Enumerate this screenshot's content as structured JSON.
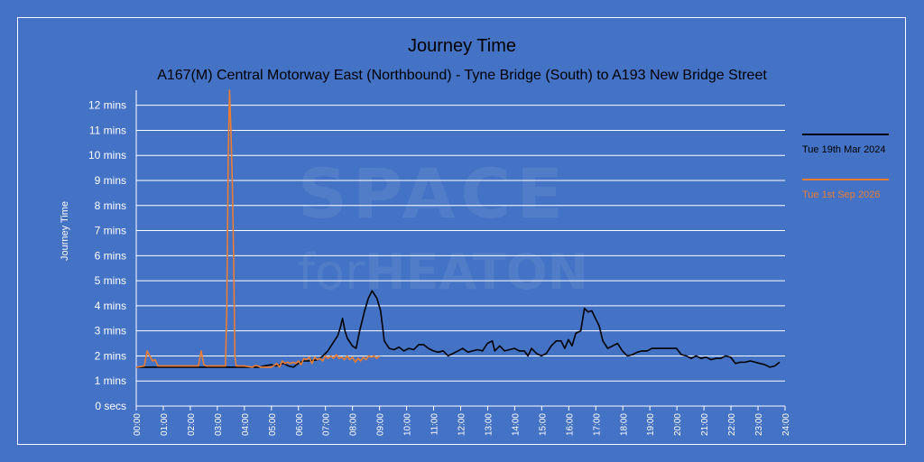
{
  "chart_data": {
    "type": "line",
    "title": "Journey Time",
    "subtitle": "A167(M) Central Motorway East (Northbound) - Tyne Bridge (South) to A193 New Bridge Street",
    "ylabel": "Journey Time",
    "xlabel": "",
    "ylim": [
      0,
      12.6
    ],
    "y_ticks": [
      "0 secs",
      "1 mins",
      "2 mins",
      "3 mins",
      "4 mins",
      "5 mins",
      "6 mins",
      "7 mins",
      "8 mins",
      "9 mins",
      "10 mins",
      "11 mins",
      "12 mins"
    ],
    "x_ticks": [
      "00:00",
      "01:00",
      "02:00",
      "03:00",
      "04:00",
      "05:00",
      "06:00",
      "07:00",
      "08:00",
      "09:00",
      "10:00",
      "11:00",
      "12:00",
      "13:00",
      "14:00",
      "15:00",
      "16:00",
      "17:00",
      "18:00",
      "19:00",
      "20:00",
      "21:00",
      "22:00",
      "23:00",
      "24:00"
    ],
    "grid": true,
    "legend_position": "right",
    "series": [
      {
        "name": "Tue 19th Mar 2024",
        "color": "#000000",
        "points": [
          [
            0,
            1.55
          ],
          [
            5,
            1.55
          ],
          [
            5.2,
            1.6
          ],
          [
            5.5,
            1.65
          ],
          [
            5.7,
            1.6
          ],
          [
            6,
            1.7
          ],
          [
            6.2,
            1.6
          ],
          [
            6.4,
            1.55
          ],
          [
            6.6,
            1.7
          ],
          [
            6.8,
            1.8
          ],
          [
            7,
            1.8
          ],
          [
            7.2,
            1.82
          ],
          [
            7.4,
            1.85
          ],
          [
            7.6,
            2.0
          ],
          [
            7.8,
            2.2
          ],
          [
            8.0,
            2.5
          ],
          [
            8.2,
            2.8
          ],
          [
            8.3,
            3.1
          ],
          [
            8.4,
            3.5
          ],
          [
            8.5,
            3.0
          ],
          [
            8.6,
            2.7
          ],
          [
            8.8,
            2.4
          ],
          [
            8.95,
            2.3
          ],
          [
            9.1,
            3.0
          ],
          [
            9.3,
            3.8
          ],
          [
            9.45,
            4.3
          ],
          [
            9.6,
            4.6
          ],
          [
            9.8,
            4.3
          ],
          [
            9.95,
            3.8
          ],
          [
            10.1,
            2.6
          ],
          [
            10.3,
            2.3
          ],
          [
            10.5,
            2.25
          ],
          [
            10.7,
            2.35
          ],
          [
            10.9,
            2.2
          ],
          [
            11.1,
            2.3
          ],
          [
            11.3,
            2.25
          ],
          [
            11.5,
            2.45
          ],
          [
            11.7,
            2.45
          ],
          [
            11.9,
            2.3
          ],
          [
            12.1,
            2.2
          ],
          [
            12.3,
            2.15
          ],
          [
            12.5,
            2.2
          ],
          [
            12.7,
            2.0
          ],
          [
            12.9,
            2.1
          ],
          [
            13.1,
            2.2
          ],
          [
            13.3,
            2.3
          ],
          [
            13.5,
            2.15
          ],
          [
            13.7,
            2.2
          ],
          [
            13.9,
            2.25
          ],
          [
            14.1,
            2.2
          ],
          [
            14.3,
            2.5
          ],
          [
            14.5,
            2.6
          ],
          [
            14.6,
            2.2
          ],
          [
            14.8,
            2.4
          ],
          [
            15.0,
            2.2
          ],
          [
            15.2,
            2.25
          ],
          [
            15.4,
            2.3
          ],
          [
            15.6,
            2.2
          ],
          [
            15.8,
            2.2
          ],
          [
            15.95,
            2.0
          ],
          [
            16.1,
            2.3
          ],
          [
            16.3,
            2.1
          ],
          [
            16.5,
            2.0
          ],
          [
            16.7,
            2.1
          ],
          [
            16.9,
            2.4
          ],
          [
            17.1,
            2.6
          ],
          [
            17.3,
            2.6
          ],
          [
            17.45,
            2.3
          ],
          [
            17.6,
            2.65
          ],
          [
            17.75,
            2.4
          ],
          [
            17.9,
            2.9
          ],
          [
            18.1,
            3.0
          ],
          [
            18.25,
            3.9
          ],
          [
            18.4,
            3.75
          ],
          [
            18.55,
            3.8
          ],
          [
            18.7,
            3.5
          ],
          [
            18.85,
            3.2
          ],
          [
            19.0,
            2.6
          ],
          [
            19.2,
            2.3
          ],
          [
            19.4,
            2.4
          ],
          [
            19.6,
            2.5
          ],
          [
            19.8,
            2.2
          ],
          [
            20.0,
            2.0
          ],
          [
            20.2,
            2.05
          ],
          [
            20.4,
            2.15
          ],
          [
            20.6,
            2.2
          ],
          [
            20.8,
            2.2
          ],
          [
            21.0,
            2.3
          ],
          [
            21.2,
            2.3
          ],
          [
            21.4,
            2.3
          ],
          [
            21.6,
            2.3
          ],
          [
            21.8,
            2.3
          ],
          [
            22.0,
            2.3
          ],
          [
            22.2,
            2.05
          ],
          [
            22.4,
            2.0
          ],
          [
            22.6,
            1.9
          ],
          [
            22.8,
            2.0
          ],
          [
            23.0,
            1.9
          ],
          [
            23.2,
            1.95
          ],
          [
            23.4,
            1.85
          ],
          [
            23.6,
            1.9
          ],
          [
            23.8,
            1.9
          ],
          [
            24.0,
            2.0
          ],
          [
            24.2,
            1.95
          ],
          [
            24.4,
            1.7
          ],
          [
            24.6,
            1.75
          ],
          [
            24.8,
            1.75
          ],
          [
            25.0,
            1.8
          ],
          [
            25.2,
            1.75
          ],
          [
            25.4,
            1.7
          ],
          [
            25.6,
            1.65
          ],
          [
            25.8,
            1.55
          ],
          [
            26.0,
            1.6
          ],
          [
            26.2,
            1.75
          ]
        ]
      },
      {
        "name": "Tue 1st Sep 2026",
        "color": "#ed7d31",
        "points": [
          [
            0,
            1.55
          ],
          [
            0.3,
            1.6
          ],
          [
            0.4,
            2.2
          ],
          [
            0.5,
            2.0
          ],
          [
            0.6,
            1.8
          ],
          [
            0.7,
            1.85
          ],
          [
            0.8,
            1.6
          ],
          [
            1.0,
            1.6
          ],
          [
            2.0,
            1.6
          ],
          [
            2.3,
            1.6
          ],
          [
            2.4,
            2.2
          ],
          [
            2.5,
            1.65
          ],
          [
            2.6,
            1.6
          ],
          [
            3.3,
            1.6
          ],
          [
            3.35,
            4.0
          ],
          [
            3.4,
            10.0
          ],
          [
            3.45,
            12.6
          ],
          [
            3.5,
            11.0
          ],
          [
            3.55,
            9.0
          ],
          [
            3.6,
            6.0
          ],
          [
            3.65,
            2.0
          ],
          [
            3.7,
            1.6
          ],
          [
            4.0,
            1.6
          ],
          [
            4.3,
            1.55
          ],
          [
            4.4,
            1.62
          ],
          [
            4.5,
            1.6
          ],
          [
            4.6,
            1.55
          ],
          [
            5.0,
            1.55
          ],
          [
            5.2,
            1.7
          ],
          [
            5.3,
            1.55
          ],
          [
            5.4,
            1.8
          ],
          [
            5.5,
            1.7
          ],
          [
            5.6,
            1.75
          ],
          [
            5.7,
            1.7
          ],
          [
            5.8,
            1.75
          ],
          [
            5.9,
            1.7
          ],
          [
            6.0,
            1.8
          ],
          [
            6.1,
            1.65
          ],
          [
            6.2,
            1.9
          ],
          [
            6.3,
            1.85
          ],
          [
            6.4,
            1.95
          ],
          [
            6.5,
            1.7
          ],
          [
            6.6,
            1.95
          ],
          [
            6.7,
            1.85
          ],
          [
            6.8,
            1.9
          ],
          [
            6.9,
            1.8
          ],
          [
            7.0,
            2.0
          ],
          [
            7.1,
            1.9
          ],
          [
            7.2,
            2.0
          ],
          [
            7.3,
            1.9
          ],
          [
            7.4,
            2.05
          ],
          [
            7.5,
            1.9
          ],
          [
            7.6,
            1.95
          ],
          [
            7.7,
            1.85
          ],
          [
            7.8,
            2.0
          ],
          [
            7.9,
            1.85
          ],
          [
            8.0,
            1.95
          ],
          [
            8.1,
            1.75
          ],
          [
            8.2,
            1.9
          ],
          [
            8.3,
            1.8
          ],
          [
            8.4,
            1.95
          ],
          [
            8.5,
            1.85
          ],
          [
            8.6,
            2.0
          ],
          [
            8.7,
            1.95
          ],
          [
            8.8,
            2.0
          ],
          [
            8.9,
            1.9
          ],
          [
            9.0,
            2.0
          ]
        ]
      }
    ]
  }
}
